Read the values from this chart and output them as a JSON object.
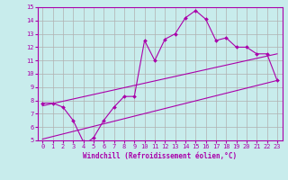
{
  "title": "",
  "xlabel": "Windchill (Refroidissement éolien,°C)",
  "ylabel": "",
  "bg_color": "#c8ecec",
  "grid_color": "#b0b0b0",
  "line_color": "#aa00aa",
  "xlim": [
    -0.5,
    23.5
  ],
  "ylim": [
    5,
    15
  ],
  "xticks": [
    0,
    1,
    2,
    3,
    4,
    5,
    6,
    7,
    8,
    9,
    10,
    11,
    12,
    13,
    14,
    15,
    16,
    17,
    18,
    19,
    20,
    21,
    22,
    23
  ],
  "yticks": [
    5,
    6,
    7,
    8,
    9,
    10,
    11,
    12,
    13,
    14,
    15
  ],
  "curve_x": [
    0,
    1,
    2,
    3,
    4,
    4.2,
    5,
    6,
    7,
    8,
    9,
    10,
    11,
    12,
    13,
    14,
    15,
    16,
    17,
    18,
    19,
    20,
    21,
    22,
    23
  ],
  "curve_y": [
    7.8,
    7.8,
    7.5,
    6.5,
    4.9,
    4.75,
    5.2,
    6.5,
    7.5,
    8.3,
    8.3,
    12.5,
    11.0,
    12.6,
    13.0,
    14.2,
    14.75,
    14.1,
    12.5,
    12.7,
    12.0,
    12.0,
    11.5,
    11.5,
    9.5
  ],
  "line1_x": [
    0,
    23
  ],
  "line1_y": [
    7.6,
    11.5
  ],
  "line2_x": [
    0,
    23
  ],
  "line2_y": [
    5.1,
    9.5
  ],
  "tick_fontsize": 5,
  "xlabel_fontsize": 5.5
}
